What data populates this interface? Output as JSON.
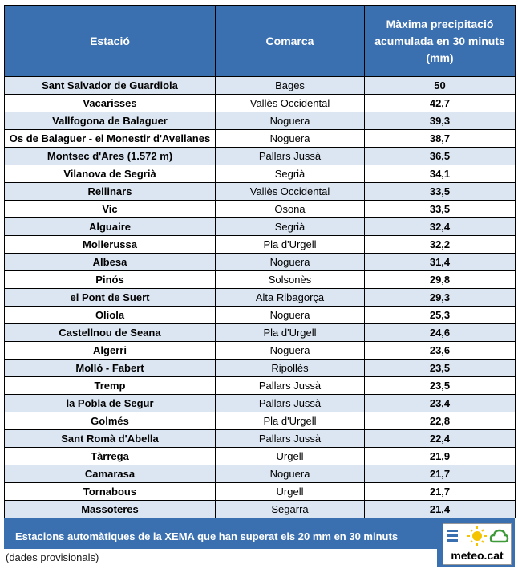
{
  "header": {
    "col_station": "Estació",
    "col_county": "Comarca",
    "col_max_line1": "Màxima precipitació",
    "col_max_line2": "acumulada en 30 minuts",
    "col_max_line3": "(mm)"
  },
  "rows": [
    {
      "station": "Sant Salvador de Guardiola",
      "county": "Bages",
      "value": "50"
    },
    {
      "station": "Vacarisses",
      "county": "Vallès Occidental",
      "value": "42,7"
    },
    {
      "station": "Vallfogona de Balaguer",
      "county": "Noguera",
      "value": "39,3"
    },
    {
      "station": "Os de Balaguer - el Monestir d'Avellanes",
      "county": "Noguera",
      "value": "38,7"
    },
    {
      "station": "Montsec d'Ares (1.572 m)",
      "county": "Pallars Jussà",
      "value": "36,5"
    },
    {
      "station": "Vilanova de Segrià",
      "county": "Segrià",
      "value": "34,1"
    },
    {
      "station": "Rellinars",
      "county": "Vallès Occidental",
      "value": "33,5"
    },
    {
      "station": "Vic",
      "county": "Osona",
      "value": "33,5"
    },
    {
      "station": "Alguaire",
      "county": "Segrià",
      "value": "32,4"
    },
    {
      "station": "Mollerussa",
      "county": "Pla d'Urgell",
      "value": "32,2"
    },
    {
      "station": "Albesa",
      "county": "Noguera",
      "value": "31,4"
    },
    {
      "station": "Pinós",
      "county": "Solsonès",
      "value": "29,8"
    },
    {
      "station": "el Pont de Suert",
      "county": "Alta Ribagorça",
      "value": "29,3"
    },
    {
      "station": "Oliola",
      "county": "Noguera",
      "value": "25,3"
    },
    {
      "station": "Castellnou de Seana",
      "county": "Pla d'Urgell",
      "value": "24,6"
    },
    {
      "station": "Algerri",
      "county": "Noguera",
      "value": "23,6"
    },
    {
      "station": "Molló - Fabert",
      "county": "Ripollès",
      "value": "23,5"
    },
    {
      "station": "Tremp",
      "county": "Pallars Jussà",
      "value": "23,5"
    },
    {
      "station": "la Pobla de Segur",
      "county": "Pallars Jussà",
      "value": "23,4"
    },
    {
      "station": "Golmés",
      "county": "Pla d'Urgell",
      "value": "22,8"
    },
    {
      "station": "Sant Romà d'Abella",
      "county": "Pallars Jussà",
      "value": "22,4"
    },
    {
      "station": "Tàrrega",
      "county": "Urgell",
      "value": "21,9"
    },
    {
      "station": "Camarasa",
      "county": "Noguera",
      "value": "21,7"
    },
    {
      "station": "Tornabous",
      "county": "Urgell",
      "value": "21,7"
    },
    {
      "station": "Massoteres",
      "county": "Segarra",
      "value": "21,4"
    }
  ],
  "footer": {
    "caption": "Estacions automàtiques de la XEMA que han superat els 20 mm en 30 minuts",
    "note": "(dades provisionals)",
    "logo_text": "meteo.cat"
  },
  "colors": {
    "header_blue": "#3a6fb0",
    "row_alt": "#dce6f2",
    "sun_yellow": "#f5c400",
    "cloud_green": "#3f9a3a"
  }
}
